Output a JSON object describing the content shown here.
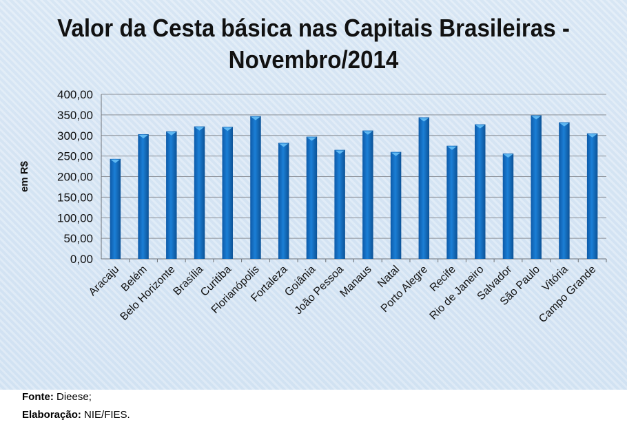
{
  "chart_data": {
    "type": "bar",
    "title_line1": "Valor da Cesta básica nas Capitais Brasileiras -",
    "title_line2": "Novembro/2014",
    "ylabel": "em R$",
    "xlabel": "",
    "ylim": [
      0,
      400
    ],
    "yticks": [
      "0,00",
      "50,00",
      "100,00",
      "150,00",
      "200,00",
      "250,00",
      "300,00",
      "350,00",
      "400,00"
    ],
    "grid": true,
    "color": "#1570c4",
    "categories": [
      "Aracaju",
      "Belém",
      "Belo Horizonte",
      "Brasília",
      "Curitiba",
      "Florianópolis",
      "Fortaleza",
      "Goiânia",
      "João Pessoa",
      "Manaus",
      "Natal",
      "Porto Alegre",
      "Recife",
      "Rio de Janeiro",
      "Salvador",
      "São Paulo",
      "Vitória",
      "Campo Grande"
    ],
    "values": [
      243,
      303,
      310,
      322,
      321,
      347,
      282,
      297,
      265,
      312,
      260,
      344,
      275,
      327,
      256,
      349,
      332,
      305
    ]
  },
  "footer": {
    "source_label": "Fonte:",
    "source_value": " Dieese;",
    "credit_label": "Elaboração:",
    "credit_value": " NIE/FIES."
  }
}
